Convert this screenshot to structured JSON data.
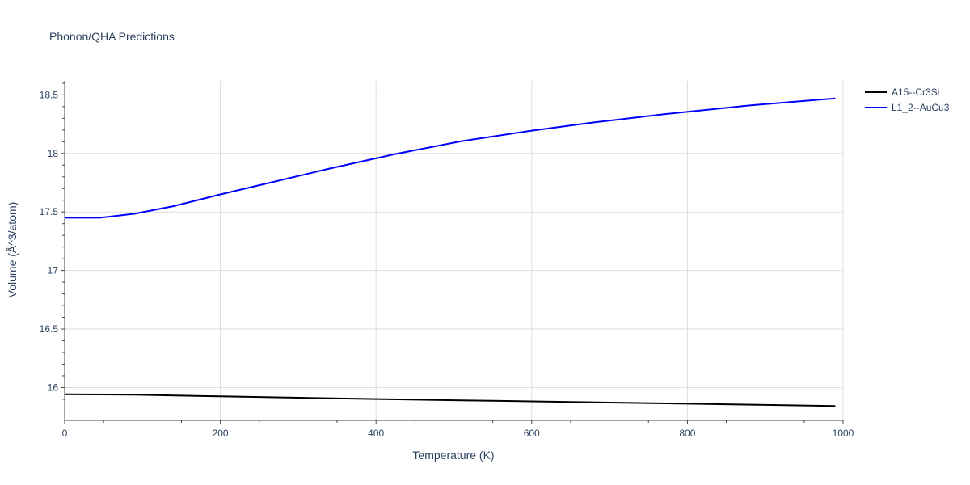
{
  "chart_data": {
    "type": "line",
    "title": "Phonon/QHA Predictions",
    "xlabel": "Temperature (K)",
    "ylabel": "Volume (Å^3/atom)",
    "xlim": [
      0,
      1000
    ],
    "ylim": [
      15.72,
      18.62
    ],
    "xticks": [
      0,
      200,
      400,
      600,
      800,
      1000
    ],
    "xtick_labels": [
      "0",
      "200",
      "400",
      "600",
      "800",
      "1000"
    ],
    "yticks": [
      16,
      16.5,
      17,
      17.5,
      18,
      18.5
    ],
    "ytick_labels": [
      "16",
      "16.5",
      "17",
      "17.5",
      "18",
      "18.5"
    ],
    "grid": true,
    "legend_position": "top-right",
    "series": [
      {
        "name": "A15--Cr3Si",
        "color": "#000000",
        "x": [
          0,
          90,
          200,
          300,
          400,
          500,
          600,
          700,
          800,
          900,
          990
        ],
        "y": [
          15.943,
          15.939,
          15.925,
          15.913,
          15.902,
          15.892,
          15.882,
          15.872,
          15.862,
          15.852,
          15.843
        ]
      },
      {
        "name": "L1_2--AuCu3",
        "color": "#0000ff",
        "x": [
          0,
          45,
          90,
          140,
          200,
          270,
          340,
          425,
          510,
          600,
          680,
          770,
          880,
          990
        ],
        "y": [
          17.45,
          17.45,
          17.485,
          17.55,
          17.65,
          17.76,
          17.87,
          17.995,
          18.105,
          18.195,
          18.265,
          18.335,
          18.41,
          18.47
        ]
      }
    ]
  }
}
